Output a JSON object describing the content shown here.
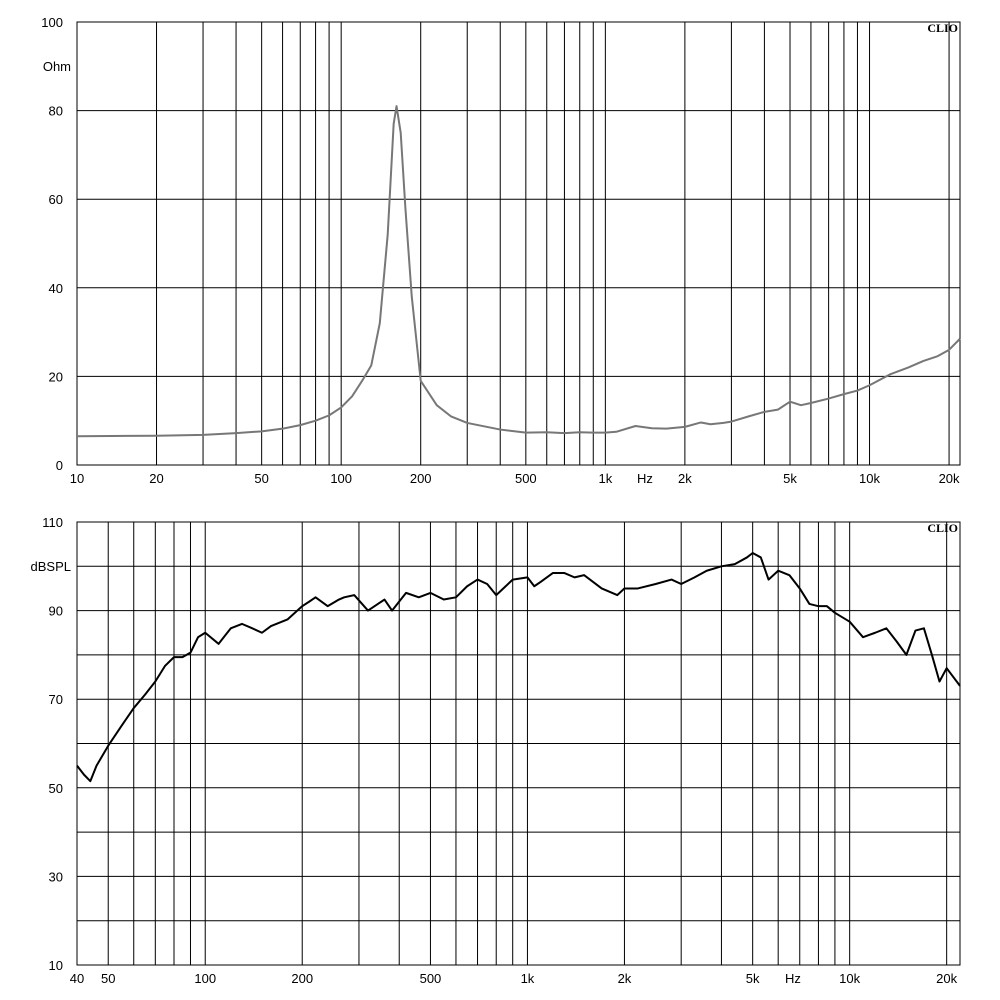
{
  "chart_data": [
    {
      "type": "line",
      "brand": "CLIO",
      "xlabel": "Hz",
      "ylabel": "Ohm",
      "x_scale": "log",
      "xlim": [
        10,
        22000
      ],
      "ylim": [
        0,
        100
      ],
      "y_ticks": [
        0,
        20,
        40,
        60,
        80,
        100
      ],
      "y_ticks_labeled": [
        "0",
        "20",
        "40",
        "60",
        "80",
        "100"
      ],
      "x_tick_labels": [
        {
          "v": 10,
          "t": "10"
        },
        {
          "v": 20,
          "t": "20"
        },
        {
          "v": 50,
          "t": "50"
        },
        {
          "v": 100,
          "t": "100"
        },
        {
          "v": 200,
          "t": "200"
        },
        {
          "v": 500,
          "t": "500"
        },
        {
          "v": 1000,
          "t": "1k"
        },
        {
          "v": 2000,
          "t": "2k"
        },
        {
          "v": 5000,
          "t": "5k"
        },
        {
          "v": 10000,
          "t": "10k"
        },
        {
          "v": 20000,
          "t": "20k"
        }
      ],
      "line_color": "#777777",
      "series": [
        {
          "x": [
            10,
            20,
            30,
            40,
            50,
            60,
            70,
            80,
            90,
            100,
            110,
            120,
            130,
            140,
            150,
            158,
            162,
            168,
            175,
            185,
            200,
            230,
            260,
            300,
            400,
            500,
            600,
            700,
            800,
            900,
            1000,
            1100,
            1300,
            1500,
            1700,
            2000,
            2300,
            2500,
            2800,
            3000,
            3500,
            4000,
            4500,
            5000,
            5500,
            6000,
            7000,
            8000,
            9000,
            10000,
            12000,
            14000,
            16000,
            18000,
            20000,
            22000
          ],
          "y": [
            6.5,
            6.6,
            6.8,
            7.2,
            7.6,
            8.2,
            9.0,
            10.0,
            11.2,
            13.0,
            15.5,
            19.0,
            22.5,
            32.0,
            52.0,
            77.0,
            81.0,
            75.0,
            58.0,
            38.0,
            19.0,
            13.5,
            11.0,
            9.5,
            8.0,
            7.3,
            7.4,
            7.2,
            7.4,
            7.3,
            7.3,
            7.5,
            8.8,
            8.3,
            8.2,
            8.6,
            9.6,
            9.2,
            9.5,
            9.8,
            11.0,
            12.0,
            12.5,
            14.3,
            13.5,
            14.0,
            15.0,
            16.0,
            16.8,
            18.0,
            20.5,
            22.0,
            23.5,
            24.5,
            26.0,
            28.5
          ]
        }
      ]
    },
    {
      "type": "line",
      "brand": "CLIO",
      "xlabel": "Hz",
      "ylabel": "dBSPL",
      "x_scale": "log",
      "xlim": [
        40,
        22000
      ],
      "ylim": [
        10,
        110
      ],
      "y_ticks": [
        10,
        20,
        30,
        40,
        50,
        60,
        70,
        80,
        90,
        100,
        110
      ],
      "y_ticks_labeled": [
        "10",
        "30",
        "50",
        "70",
        "90",
        "110"
      ],
      "x_tick_labels": [
        {
          "v": 40,
          "t": "40"
        },
        {
          "v": 50,
          "t": "50"
        },
        {
          "v": 100,
          "t": "100"
        },
        {
          "v": 200,
          "t": "200"
        },
        {
          "v": 500,
          "t": "500"
        },
        {
          "v": 1000,
          "t": "1k"
        },
        {
          "v": 2000,
          "t": "2k"
        },
        {
          "v": 5000,
          "t": "5k"
        },
        {
          "v": 10000,
          "t": "10k"
        },
        {
          "v": 20000,
          "t": "20k"
        }
      ],
      "line_color": "#000000",
      "series": [
        {
          "x": [
            40,
            42,
            44,
            46,
            50,
            55,
            60,
            65,
            70,
            75,
            80,
            85,
            90,
            95,
            100,
            110,
            120,
            130,
            140,
            150,
            160,
            180,
            200,
            210,
            220,
            240,
            260,
            270,
            290,
            320,
            360,
            380,
            420,
            460,
            500,
            550,
            600,
            650,
            700,
            750,
            800,
            900,
            1000,
            1050,
            1100,
            1200,
            1300,
            1400,
            1500,
            1700,
            1900,
            2000,
            2200,
            2500,
            2800,
            3000,
            3300,
            3600,
            4000,
            4400,
            4800,
            5000,
            5300,
            5600,
            6000,
            6500,
            7000,
            7500,
            8000,
            8500,
            9000,
            10000,
            11000,
            12000,
            13000,
            14000,
            15000,
            16000,
            17000,
            18000,
            19000,
            20000,
            22000
          ],
          "y": [
            55,
            53,
            51.5,
            55,
            59.5,
            64,
            68,
            71,
            74,
            77.5,
            79.5,
            79.5,
            80.5,
            84,
            85,
            82.5,
            86,
            87,
            86,
            85,
            86.5,
            88,
            91,
            92,
            93,
            91,
            92.5,
            93,
            93.5,
            90,
            92.5,
            90,
            94,
            93,
            94,
            92.5,
            93,
            95.5,
            97,
            96,
            93.5,
            97,
            97.5,
            95.5,
            96.5,
            98.5,
            98.5,
            97.5,
            98,
            95,
            93.5,
            95,
            95,
            96,
            97,
            96,
            97.5,
            99,
            100,
            100.5,
            102,
            103,
            102,
            97,
            99,
            98,
            95,
            91.5,
            91,
            91,
            89.5,
            87.5,
            84,
            85,
            86,
            83,
            80,
            85.5,
            86,
            80,
            74,
            77,
            73
          ]
        }
      ]
    }
  ]
}
